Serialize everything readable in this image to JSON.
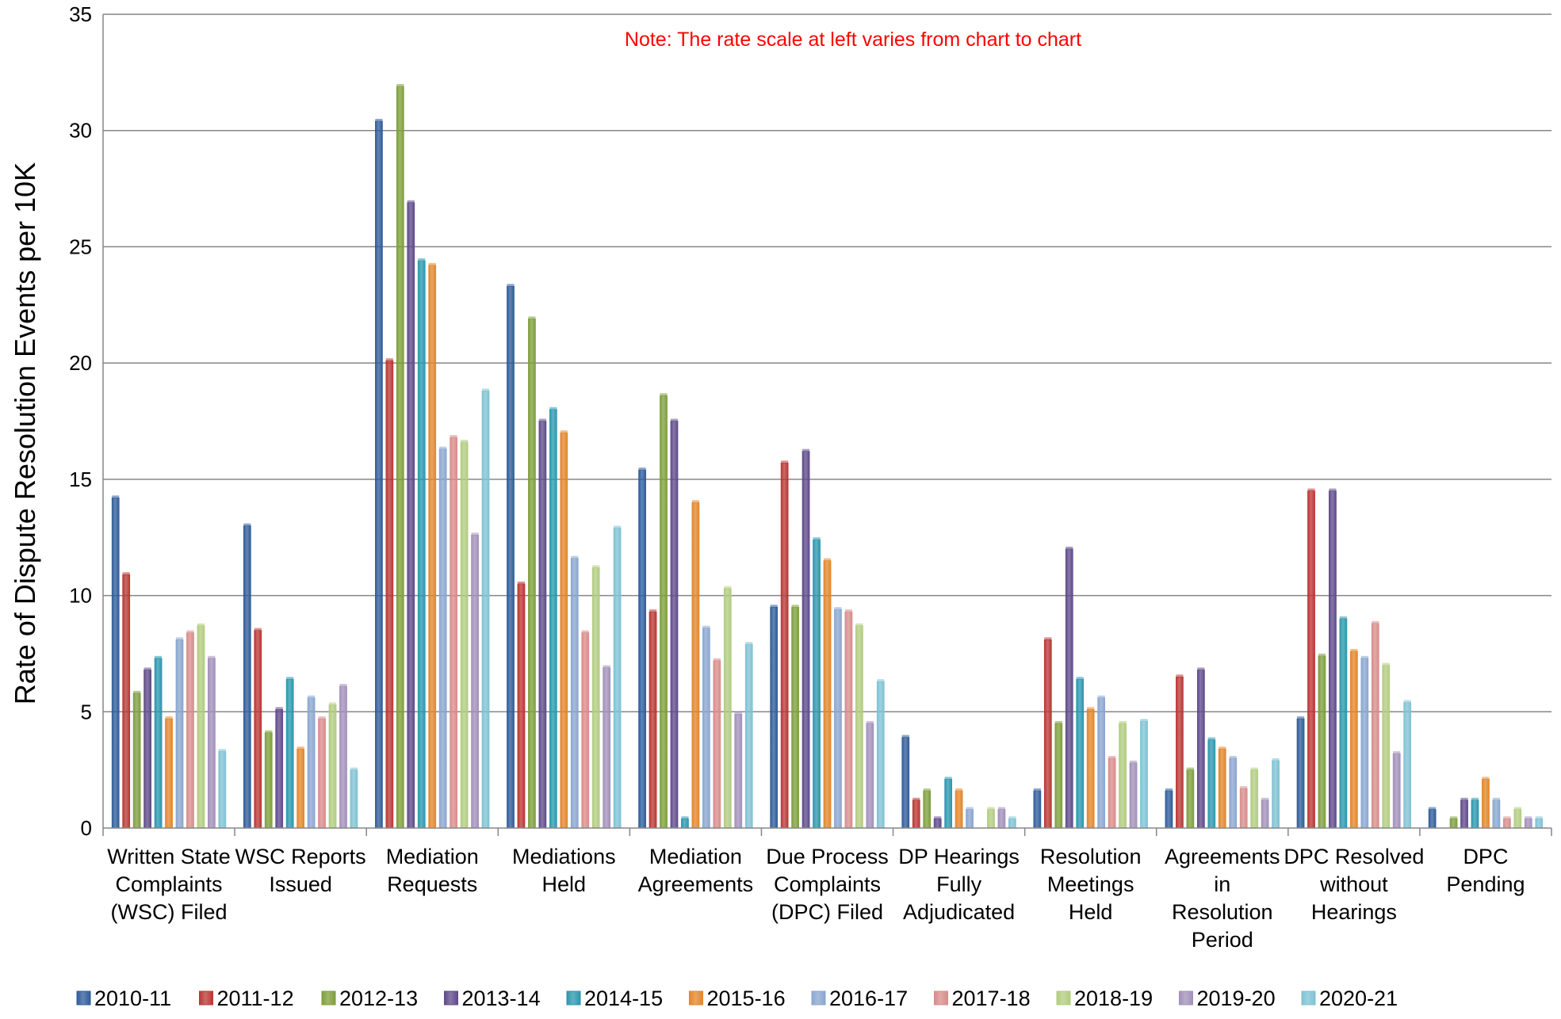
{
  "chart_data": {
    "type": "bar",
    "title": "",
    "xlabel": "",
    "ylabel": "Rate of Dispute Resolution Events per 10K",
    "note": "Note:  The rate scale at left varies from chart to chart",
    "ylim": [
      0,
      35
    ],
    "yticks": [
      0,
      5,
      10,
      15,
      20,
      25,
      30,
      35
    ],
    "grid": true,
    "legend_position": "bottom",
    "categories": [
      [
        "Written State",
        "Complaints",
        "(WSC) Filed"
      ],
      [
        "WSC Reports",
        "Issued"
      ],
      [
        "Mediation",
        "Requests"
      ],
      [
        "Mediations",
        "Held"
      ],
      [
        "Mediation",
        "Agreements"
      ],
      [
        "Due Process",
        "Complaints",
        "(DPC) Filed"
      ],
      [
        "DP Hearings",
        "Fully",
        "Adjudicated"
      ],
      [
        "Resolution",
        "Meetings",
        "Held"
      ],
      [
        "Agreements",
        "in",
        "Resolution",
        "Period"
      ],
      [
        "DPC Resolved",
        "without",
        "Hearings"
      ],
      [
        "DPC",
        "Pending"
      ]
    ],
    "series": [
      {
        "name": "2010-11",
        "color": "#2F5C99",
        "values": [
          14.2,
          13.0,
          30.4,
          23.3,
          15.4,
          9.5,
          3.9,
          1.6,
          1.6,
          4.7,
          0.8
        ]
      },
      {
        "name": "2011-12",
        "color": "#B93734",
        "values": [
          10.9,
          8.5,
          20.1,
          10.5,
          9.3,
          15.7,
          1.2,
          8.1,
          6.5,
          14.5,
          0.0
        ]
      },
      {
        "name": "2012-13",
        "color": "#7E9F3C",
        "values": [
          5.8,
          4.1,
          31.9,
          21.9,
          18.6,
          9.5,
          1.6,
          4.5,
          2.5,
          7.4,
          0.4
        ]
      },
      {
        "name": "2013-14",
        "color": "#5F4A8A",
        "values": [
          6.8,
          5.1,
          26.9,
          17.5,
          17.5,
          16.2,
          0.4,
          12.0,
          6.8,
          14.5,
          1.2
        ]
      },
      {
        "name": "2014-15",
        "color": "#2B97AE",
        "values": [
          7.3,
          6.4,
          24.4,
          18.0,
          0.4,
          12.4,
          2.1,
          6.4,
          3.8,
          9.0,
          1.2
        ]
      },
      {
        "name": "2015-16",
        "color": "#E3862B",
        "values": [
          4.7,
          3.4,
          24.2,
          17.0,
          14.0,
          11.5,
          1.6,
          5.1,
          3.4,
          7.6,
          2.1
        ]
      },
      {
        "name": "2016-17",
        "color": "#8AA6D0",
        "values": [
          8.1,
          5.6,
          16.3,
          11.6,
          8.6,
          9.4,
          0.8,
          5.6,
          3.0,
          7.3,
          1.2
        ]
      },
      {
        "name": "2017-18",
        "color": "#D88C8A",
        "values": [
          8.4,
          4.7,
          16.8,
          8.4,
          7.2,
          9.3,
          0.0,
          3.0,
          1.7,
          8.8,
          0.4
        ]
      },
      {
        "name": "2018-19",
        "color": "#B2CC80",
        "values": [
          8.7,
          5.3,
          16.6,
          11.2,
          10.3,
          8.7,
          0.8,
          4.5,
          2.5,
          7.0,
          0.8
        ]
      },
      {
        "name": "2019-20",
        "color": "#A290BA",
        "values": [
          7.3,
          6.1,
          12.6,
          6.9,
          4.9,
          4.5,
          0.8,
          2.8,
          1.2,
          3.2,
          0.4
        ]
      },
      {
        "name": "2020-21",
        "color": "#7FC2D4",
        "values": [
          3.3,
          2.5,
          18.8,
          12.9,
          7.9,
          6.3,
          0.4,
          4.6,
          2.9,
          5.4,
          0.4
        ]
      }
    ]
  },
  "colors": {
    "note": "#FF0000",
    "grid": "#868686",
    "axis": "#868686"
  }
}
